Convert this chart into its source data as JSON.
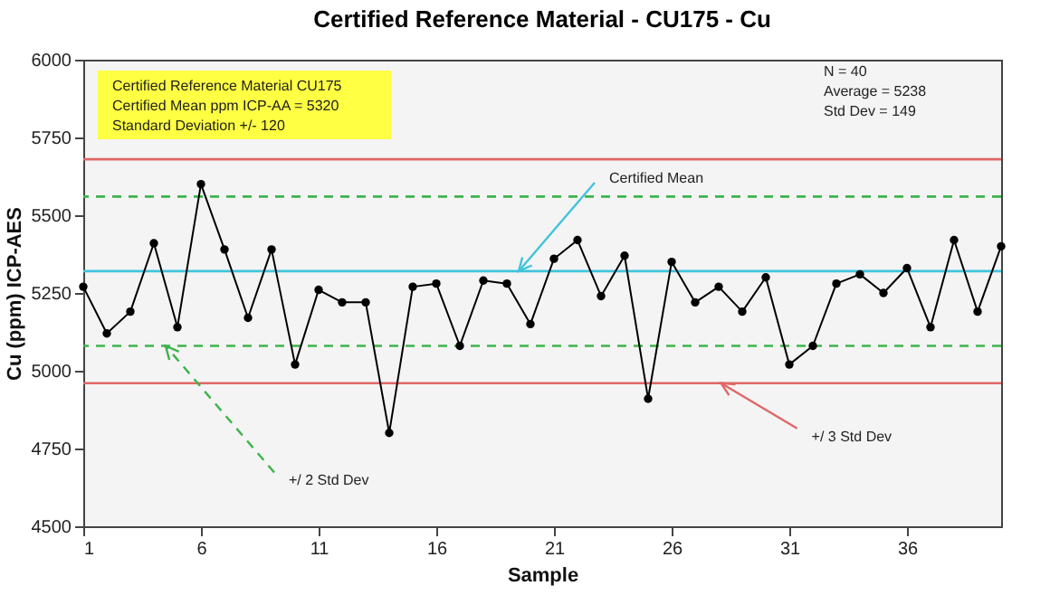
{
  "chart_data": {
    "type": "line",
    "title": "Certified Reference Material - CU175 - Cu",
    "xlabel": "Sample",
    "ylabel": "Cu (ppm) ICP-AES",
    "x": [
      1,
      2,
      3,
      4,
      5,
      6,
      7,
      8,
      9,
      10,
      11,
      12,
      13,
      14,
      15,
      16,
      17,
      18,
      19,
      20,
      21,
      22,
      23,
      24,
      25,
      26,
      27,
      28,
      29,
      30,
      31,
      32,
      33,
      34,
      35,
      36,
      37,
      38,
      39,
      40
    ],
    "series": [
      {
        "color": "#000000",
        "values": [
          5270,
          5120,
          5190,
          5410,
          5140,
          5600,
          5390,
          5170,
          5390,
          5020,
          5260,
          5220,
          5220,
          4800,
          5270,
          5280,
          5080,
          5290,
          5280,
          5150,
          5360,
          5420,
          5240,
          5370,
          4910,
          5350,
          5220,
          5270,
          5190,
          5300,
          5020,
          5080,
          5280,
          5310,
          5250,
          5330,
          5140,
          5420,
          5190,
          5400
        ]
      }
    ],
    "marker": "circle",
    "line_style": "solid",
    "xlim": [
      1,
      40
    ],
    "xticks": [
      1,
      6,
      11,
      16,
      21,
      26,
      31,
      36
    ],
    "ylim": [
      4500,
      6000
    ],
    "yticks": [
      4500,
      4750,
      5000,
      5250,
      5500,
      5750,
      6000
    ],
    "grid": false,
    "ref_lines": [
      {
        "axis": "y",
        "value": 5680,
        "label": null,
        "color": "#e06666",
        "line_style": "solid"
      },
      {
        "axis": "y",
        "value": 5560,
        "label": null,
        "color": "#3cb44b",
        "line_style": "dashed"
      },
      {
        "axis": "y",
        "value": 5320,
        "label": "Certified Mean",
        "color": "#41c4dc",
        "line_style": "solid"
      },
      {
        "axis": "y",
        "value": 5080,
        "label": "+/ 2 Std Dev",
        "color": "#3cb44b",
        "line_style": "dashed"
      },
      {
        "axis": "y",
        "value": 4960,
        "label": "+/ 3 Std Dev",
        "color": "#e06666",
        "line_style": "solid"
      }
    ],
    "annotations": [
      "Certified Reference Material CU175",
      "Certified Mean ppm ICP-AA = 5320",
      "Standard Deviation  +/- 120",
      "N = 40",
      "Average = 5238",
      "Std Dev = 149"
    ]
  }
}
